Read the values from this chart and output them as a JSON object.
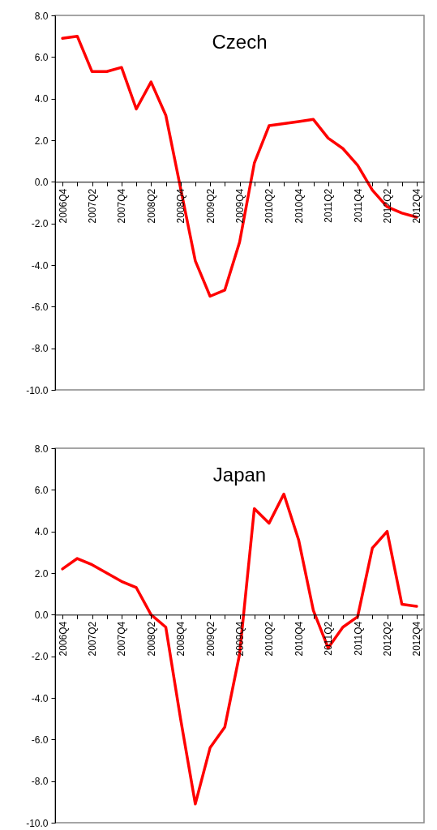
{
  "chart_data": [
    {
      "type": "line",
      "title": "Czech",
      "categories": [
        "2006Q4",
        null,
        "2007Q2",
        null,
        "2007Q4",
        null,
        "2008Q2",
        null,
        "2008Q4",
        null,
        "2009Q2",
        null,
        "2009Q4",
        null,
        "2010Q2",
        null,
        "2010Q4",
        null,
        "2011Q2",
        null,
        "2011Q4",
        null,
        "2012Q2",
        null,
        "2012Q4"
      ],
      "series": [
        {
          "color": "#ff0000",
          "values": [
            6.9,
            7.0,
            5.3,
            5.3,
            5.5,
            3.5,
            4.8,
            3.2,
            -0.3,
            -3.8,
            -5.5,
            -5.2,
            -2.9,
            0.9,
            2.7,
            2.8,
            2.9,
            3.0,
            2.1,
            1.6,
            0.8,
            -0.4,
            -1.2,
            -1.5,
            -1.7
          ]
        }
      ],
      "ylim": [
        -10,
        8
      ],
      "yticks": [
        {
          "value": -10,
          "label": "-10.0"
        },
        {
          "value": -8,
          "label": "-8.0"
        },
        {
          "value": -6,
          "label": "-6.0"
        },
        {
          "value": -4,
          "label": "-4.0"
        },
        {
          "value": -2,
          "label": "-2.0"
        },
        {
          "value": 0,
          "label": "0.0"
        },
        {
          "value": 2,
          "label": "2.0"
        },
        {
          "value": 4,
          "label": "4.0"
        },
        {
          "value": 6,
          "label": "6.0"
        },
        {
          "value": 8,
          "label": "8.0"
        }
      ]
    },
    {
      "type": "line",
      "title": "Japan",
      "categories": [
        "2006Q4",
        null,
        "2007Q2",
        null,
        "2007Q4",
        null,
        "2008Q2",
        null,
        "2008Q4",
        null,
        "2009Q2",
        null,
        "2009Q4",
        null,
        "2010Q2",
        null,
        "2010Q4",
        null,
        "2011Q2",
        null,
        "2011Q4",
        null,
        "2012Q2",
        null,
        "2012Q4"
      ],
      "series": [
        {
          "color": "#ff0000",
          "values": [
            2.2,
            2.7,
            2.4,
            2.0,
            1.6,
            1.3,
            0.0,
            -0.6,
            -5.0,
            -9.1,
            -6.4,
            -5.4,
            -1.9,
            5.1,
            4.4,
            5.8,
            3.6,
            0.2,
            -1.6,
            -0.6,
            -0.1,
            3.2,
            4.0,
            0.5,
            0.4
          ]
        }
      ],
      "ylim": [
        -10,
        8
      ],
      "yticks": [
        {
          "value": -10,
          "label": "-10.0"
        },
        {
          "value": -8,
          "label": "-8.0"
        },
        {
          "value": -6,
          "label": "-6.0"
        },
        {
          "value": -4,
          "label": "-4.0"
        },
        {
          "value": -2,
          "label": "-2.0"
        },
        {
          "value": 0,
          "label": "0.0"
        },
        {
          "value": 2,
          "label": "2.0"
        },
        {
          "value": 4,
          "label": "4.0"
        },
        {
          "value": 6,
          "label": "6.0"
        },
        {
          "value": 8,
          "label": "8.0"
        }
      ]
    }
  ]
}
